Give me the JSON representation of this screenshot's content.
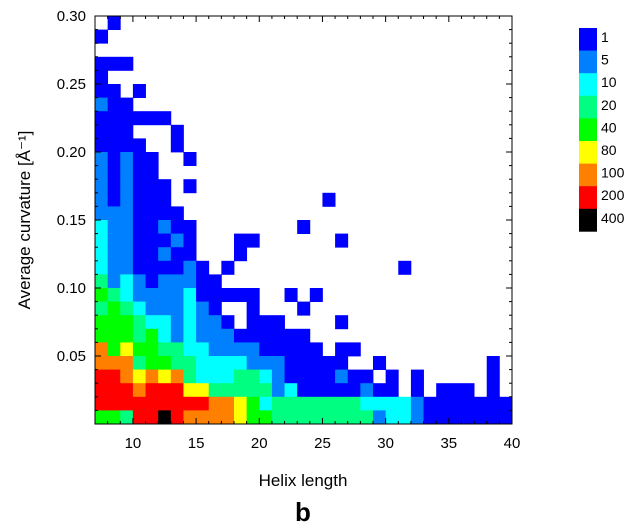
{
  "chart_data": {
    "type": "heatmap",
    "title": "",
    "xlabel": "Helix length",
    "ylabel": "Average curvature  [Å⁻¹]",
    "xlim": [
      7,
      40
    ],
    "ylim": [
      0.0,
      0.3
    ],
    "x_ticks": [
      10,
      15,
      20,
      25,
      30,
      35,
      40
    ],
    "y_ticks": [
      0.05,
      0.1,
      0.15,
      0.2,
      0.25,
      0.3
    ],
    "x_tick_labels": [
      "10",
      "15",
      "20",
      "25",
      "30",
      "35",
      "40"
    ],
    "y_tick_labels": [
      "0.05",
      "0.10",
      "0.15",
      "0.20",
      "0.25",
      "0.30"
    ],
    "bin_width_x": 1,
    "bin_width_y": 0.01,
    "color_scale": {
      "labels": [
        "1",
        "5",
        "10",
        "20",
        "40",
        "80",
        "100",
        "200",
        "400"
      ],
      "colors": [
        "#0000ff",
        "#0080ff",
        "#00ffff",
        "#00ff80",
        "#00ff00",
        "#ffff00",
        "#ff8000",
        "#ff0000",
        "#000000"
      ]
    },
    "cells_note": "Each cell: [helix_length_bin_start, curvature_bin_start, color_class_index]",
    "cells": [
      [
        8,
        0.29,
        0
      ],
      [
        7,
        0.28,
        0
      ],
      [
        7,
        0.26,
        0
      ],
      [
        8,
        0.26,
        0
      ],
      [
        9,
        0.26,
        0
      ],
      [
        7,
        0.25,
        0
      ],
      [
        7,
        0.24,
        0
      ],
      [
        8,
        0.24,
        0
      ],
      [
        10,
        0.24,
        0
      ],
      [
        7,
        0.23,
        1
      ],
      [
        8,
        0.23,
        0
      ],
      [
        9,
        0.23,
        0
      ],
      [
        7,
        0.22,
        0
      ],
      [
        8,
        0.22,
        0
      ],
      [
        9,
        0.22,
        0
      ],
      [
        10,
        0.22,
        0
      ],
      [
        11,
        0.22,
        0
      ],
      [
        12,
        0.22,
        0
      ],
      [
        7,
        0.21,
        0
      ],
      [
        8,
        0.21,
        0
      ],
      [
        9,
        0.21,
        0
      ],
      [
        13,
        0.21,
        0
      ],
      [
        7,
        0.2,
        0
      ],
      [
        8,
        0.2,
        0
      ],
      [
        9,
        0.2,
        0
      ],
      [
        10,
        0.2,
        0
      ],
      [
        13,
        0.2,
        0
      ],
      [
        7,
        0.19,
        1
      ],
      [
        8,
        0.19,
        0
      ],
      [
        9,
        0.19,
        1
      ],
      [
        10,
        0.19,
        0
      ],
      [
        11,
        0.19,
        0
      ],
      [
        14,
        0.19,
        0
      ],
      [
        7,
        0.18,
        1
      ],
      [
        8,
        0.18,
        0
      ],
      [
        9,
        0.18,
        1
      ],
      [
        10,
        0.18,
        0
      ],
      [
        11,
        0.18,
        0
      ],
      [
        7,
        0.17,
        1
      ],
      [
        8,
        0.17,
        0
      ],
      [
        9,
        0.17,
        1
      ],
      [
        10,
        0.17,
        0
      ],
      [
        11,
        0.17,
        0
      ],
      [
        12,
        0.17,
        0
      ],
      [
        14,
        0.17,
        0
      ],
      [
        7,
        0.16,
        1
      ],
      [
        8,
        0.16,
        0
      ],
      [
        9,
        0.16,
        1
      ],
      [
        10,
        0.16,
        0
      ],
      [
        11,
        0.16,
        0
      ],
      [
        12,
        0.16,
        0
      ],
      [
        25,
        0.16,
        0
      ],
      [
        7,
        0.15,
        1
      ],
      [
        8,
        0.15,
        1
      ],
      [
        9,
        0.15,
        1
      ],
      [
        10,
        0.15,
        0
      ],
      [
        11,
        0.15,
        0
      ],
      [
        12,
        0.15,
        0
      ],
      [
        13,
        0.15,
        0
      ],
      [
        7,
        0.14,
        2
      ],
      [
        8,
        0.14,
        1
      ],
      [
        9,
        0.14,
        1
      ],
      [
        10,
        0.14,
        0
      ],
      [
        11,
        0.14,
        0
      ],
      [
        12,
        0.14,
        1
      ],
      [
        13,
        0.14,
        0
      ],
      [
        14,
        0.14,
        0
      ],
      [
        23,
        0.14,
        0
      ],
      [
        7,
        0.13,
        2
      ],
      [
        8,
        0.13,
        1
      ],
      [
        9,
        0.13,
        1
      ],
      [
        10,
        0.13,
        0
      ],
      [
        11,
        0.13,
        0
      ],
      [
        12,
        0.13,
        0
      ],
      [
        13,
        0.13,
        1
      ],
      [
        14,
        0.13,
        0
      ],
      [
        18,
        0.13,
        0
      ],
      [
        19,
        0.13,
        0
      ],
      [
        26,
        0.13,
        0
      ],
      [
        7,
        0.12,
        2
      ],
      [
        8,
        0.12,
        1
      ],
      [
        9,
        0.12,
        1
      ],
      [
        10,
        0.12,
        0
      ],
      [
        11,
        0.12,
        0
      ],
      [
        12,
        0.12,
        1
      ],
      [
        13,
        0.12,
        0
      ],
      [
        14,
        0.12,
        0
      ],
      [
        18,
        0.12,
        0
      ],
      [
        7,
        0.11,
        2
      ],
      [
        8,
        0.11,
        1
      ],
      [
        9,
        0.11,
        1
      ],
      [
        10,
        0.11,
        0
      ],
      [
        11,
        0.11,
        0
      ],
      [
        12,
        0.11,
        0
      ],
      [
        13,
        0.11,
        0
      ],
      [
        14,
        0.11,
        1
      ],
      [
        15,
        0.11,
        0
      ],
      [
        17,
        0.11,
        0
      ],
      [
        31,
        0.11,
        0
      ],
      [
        7,
        0.1,
        3
      ],
      [
        8,
        0.1,
        1
      ],
      [
        9,
        0.1,
        2
      ],
      [
        10,
        0.1,
        1
      ],
      [
        11,
        0.1,
        0
      ],
      [
        12,
        0.1,
        1
      ],
      [
        13,
        0.1,
        1
      ],
      [
        14,
        0.1,
        1
      ],
      [
        15,
        0.1,
        0
      ],
      [
        16,
        0.1,
        0
      ],
      [
        7,
        0.09,
        4
      ],
      [
        8,
        0.09,
        3
      ],
      [
        9,
        0.09,
        2
      ],
      [
        10,
        0.09,
        1
      ],
      [
        11,
        0.09,
        1
      ],
      [
        12,
        0.09,
        1
      ],
      [
        13,
        0.09,
        1
      ],
      [
        14,
        0.09,
        2
      ],
      [
        15,
        0.09,
        0
      ],
      [
        16,
        0.09,
        0
      ],
      [
        17,
        0.09,
        0
      ],
      [
        18,
        0.09,
        0
      ],
      [
        19,
        0.09,
        0
      ],
      [
        22,
        0.09,
        0
      ],
      [
        24,
        0.09,
        0
      ],
      [
        7,
        0.08,
        3
      ],
      [
        8,
        0.08,
        4
      ],
      [
        9,
        0.08,
        3
      ],
      [
        10,
        0.08,
        2
      ],
      [
        11,
        0.08,
        1
      ],
      [
        12,
        0.08,
        1
      ],
      [
        13,
        0.08,
        1
      ],
      [
        14,
        0.08,
        2
      ],
      [
        15,
        0.08,
        1
      ],
      [
        16,
        0.08,
        0
      ],
      [
        19,
        0.08,
        0
      ],
      [
        23,
        0.08,
        0
      ],
      [
        7,
        0.07,
        4
      ],
      [
        8,
        0.07,
        4
      ],
      [
        9,
        0.07,
        4
      ],
      [
        10,
        0.07,
        3
      ],
      [
        11,
        0.07,
        2
      ],
      [
        12,
        0.07,
        2
      ],
      [
        13,
        0.07,
        1
      ],
      [
        14,
        0.07,
        2
      ],
      [
        15,
        0.07,
        1
      ],
      [
        16,
        0.07,
        1
      ],
      [
        17,
        0.07,
        0
      ],
      [
        19,
        0.07,
        0
      ],
      [
        20,
        0.07,
        0
      ],
      [
        21,
        0.07,
        0
      ],
      [
        26,
        0.07,
        0
      ],
      [
        7,
        0.06,
        4
      ],
      [
        8,
        0.06,
        4
      ],
      [
        9,
        0.06,
        4
      ],
      [
        10,
        0.06,
        3
      ],
      [
        11,
        0.06,
        4
      ],
      [
        12,
        0.06,
        2
      ],
      [
        13,
        0.06,
        1
      ],
      [
        14,
        0.06,
        2
      ],
      [
        15,
        0.06,
        1
      ],
      [
        16,
        0.06,
        1
      ],
      [
        17,
        0.06,
        1
      ],
      [
        18,
        0.06,
        0
      ],
      [
        19,
        0.06,
        0
      ],
      [
        20,
        0.06,
        0
      ],
      [
        21,
        0.06,
        0
      ],
      [
        22,
        0.06,
        0
      ],
      [
        23,
        0.06,
        0
      ],
      [
        7,
        0.05,
        6
      ],
      [
        8,
        0.05,
        4
      ],
      [
        9,
        0.05,
        5
      ],
      [
        10,
        0.05,
        4
      ],
      [
        11,
        0.05,
        4
      ],
      [
        12,
        0.05,
        3
      ],
      [
        13,
        0.05,
        3
      ],
      [
        14,
        0.05,
        2
      ],
      [
        15,
        0.05,
        2
      ],
      [
        16,
        0.05,
        1
      ],
      [
        17,
        0.05,
        1
      ],
      [
        18,
        0.05,
        1
      ],
      [
        19,
        0.05,
        1
      ],
      [
        20,
        0.05,
        0
      ],
      [
        21,
        0.05,
        0
      ],
      [
        22,
        0.05,
        0
      ],
      [
        23,
        0.05,
        0
      ],
      [
        24,
        0.05,
        0
      ],
      [
        26,
        0.05,
        0
      ],
      [
        27,
        0.05,
        0
      ],
      [
        7,
        0.04,
        6
      ],
      [
        8,
        0.04,
        6
      ],
      [
        9,
        0.04,
        6
      ],
      [
        10,
        0.04,
        3
      ],
      [
        11,
        0.04,
        4
      ],
      [
        12,
        0.04,
        4
      ],
      [
        13,
        0.04,
        3
      ],
      [
        14,
        0.04,
        3
      ],
      [
        15,
        0.04,
        2
      ],
      [
        16,
        0.04,
        2
      ],
      [
        17,
        0.04,
        2
      ],
      [
        18,
        0.04,
        2
      ],
      [
        19,
        0.04,
        1
      ],
      [
        20,
        0.04,
        1
      ],
      [
        21,
        0.04,
        1
      ],
      [
        22,
        0.04,
        0
      ],
      [
        23,
        0.04,
        0
      ],
      [
        24,
        0.04,
        0
      ],
      [
        25,
        0.04,
        0
      ],
      [
        26,
        0.04,
        0
      ],
      [
        29,
        0.04,
        0
      ],
      [
        38,
        0.04,
        0
      ],
      [
        7,
        0.03,
        7
      ],
      [
        8,
        0.03,
        7
      ],
      [
        9,
        0.03,
        6
      ],
      [
        10,
        0.03,
        5
      ],
      [
        11,
        0.03,
        6
      ],
      [
        12,
        0.03,
        5
      ],
      [
        13,
        0.03,
        6
      ],
      [
        14,
        0.03,
        3
      ],
      [
        15,
        0.03,
        2
      ],
      [
        16,
        0.03,
        2
      ],
      [
        17,
        0.03,
        2
      ],
      [
        18,
        0.03,
        3
      ],
      [
        19,
        0.03,
        3
      ],
      [
        20,
        0.03,
        2
      ],
      [
        21,
        0.03,
        1
      ],
      [
        22,
        0.03,
        0
      ],
      [
        23,
        0.03,
        0
      ],
      [
        24,
        0.03,
        0
      ],
      [
        25,
        0.03,
        0
      ],
      [
        26,
        0.03,
        1
      ],
      [
        27,
        0.03,
        0
      ],
      [
        28,
        0.03,
        0
      ],
      [
        30,
        0.03,
        0
      ],
      [
        32,
        0.03,
        0
      ],
      [
        38,
        0.03,
        0
      ],
      [
        7,
        0.02,
        7
      ],
      [
        8,
        0.02,
        7
      ],
      [
        9,
        0.02,
        7
      ],
      [
        10,
        0.02,
        6
      ],
      [
        11,
        0.02,
        7
      ],
      [
        12,
        0.02,
        7
      ],
      [
        13,
        0.02,
        7
      ],
      [
        14,
        0.02,
        5
      ],
      [
        15,
        0.02,
        5
      ],
      [
        16,
        0.02,
        3
      ],
      [
        17,
        0.02,
        3
      ],
      [
        18,
        0.02,
        3
      ],
      [
        19,
        0.02,
        3
      ],
      [
        20,
        0.02,
        3
      ],
      [
        21,
        0.02,
        1
      ],
      [
        22,
        0.02,
        2
      ],
      [
        23,
        0.02,
        0
      ],
      [
        24,
        0.02,
        0
      ],
      [
        25,
        0.02,
        0
      ],
      [
        26,
        0.02,
        0
      ],
      [
        27,
        0.02,
        0
      ],
      [
        28,
        0.02,
        1
      ],
      [
        29,
        0.02,
        0
      ],
      [
        30,
        0.02,
        0
      ],
      [
        32,
        0.02,
        0
      ],
      [
        34,
        0.02,
        0
      ],
      [
        35,
        0.02,
        0
      ],
      [
        36,
        0.02,
        0
      ],
      [
        38,
        0.02,
        0
      ],
      [
        7,
        0.01,
        7
      ],
      [
        8,
        0.01,
        7
      ],
      [
        9,
        0.01,
        7
      ],
      [
        10,
        0.01,
        7
      ],
      [
        11,
        0.01,
        7
      ],
      [
        12,
        0.01,
        7
      ],
      [
        13,
        0.01,
        7
      ],
      [
        14,
        0.01,
        7
      ],
      [
        15,
        0.01,
        7
      ],
      [
        16,
        0.01,
        6
      ],
      [
        17,
        0.01,
        6
      ],
      [
        18,
        0.01,
        5
      ],
      [
        19,
        0.01,
        4
      ],
      [
        20,
        0.01,
        2
      ],
      [
        21,
        0.01,
        3
      ],
      [
        22,
        0.01,
        3
      ],
      [
        23,
        0.01,
        3
      ],
      [
        24,
        0.01,
        3
      ],
      [
        25,
        0.01,
        3
      ],
      [
        26,
        0.01,
        3
      ],
      [
        27,
        0.01,
        3
      ],
      [
        28,
        0.01,
        2
      ],
      [
        29,
        0.01,
        2
      ],
      [
        30,
        0.01,
        2
      ],
      [
        31,
        0.01,
        2
      ],
      [
        32,
        0.01,
        1
      ],
      [
        33,
        0.01,
        0
      ],
      [
        34,
        0.01,
        0
      ],
      [
        35,
        0.01,
        0
      ],
      [
        36,
        0.01,
        0
      ],
      [
        37,
        0.01,
        0
      ],
      [
        38,
        0.01,
        0
      ],
      [
        39,
        0.01,
        0
      ],
      [
        7,
        0.0,
        4
      ],
      [
        8,
        0.0,
        4
      ],
      [
        9,
        0.0,
        3
      ],
      [
        10,
        0.0,
        7
      ],
      [
        11,
        0.0,
        7
      ],
      [
        12,
        0.0,
        8
      ],
      [
        13,
        0.0,
        7
      ],
      [
        14,
        0.0,
        6
      ],
      [
        15,
        0.0,
        6
      ],
      [
        16,
        0.0,
        6
      ],
      [
        17,
        0.0,
        6
      ],
      [
        18,
        0.0,
        5
      ],
      [
        19,
        0.0,
        4
      ],
      [
        20,
        0.0,
        4
      ],
      [
        21,
        0.0,
        3
      ],
      [
        22,
        0.0,
        3
      ],
      [
        23,
        0.0,
        3
      ],
      [
        24,
        0.0,
        3
      ],
      [
        25,
        0.0,
        3
      ],
      [
        26,
        0.0,
        3
      ],
      [
        27,
        0.0,
        3
      ],
      [
        28,
        0.0,
        3
      ],
      [
        29,
        0.0,
        1
      ],
      [
        30,
        0.0,
        2
      ],
      [
        31,
        0.0,
        2
      ],
      [
        32,
        0.0,
        1
      ],
      [
        33,
        0.0,
        0
      ],
      [
        34,
        0.0,
        0
      ],
      [
        35,
        0.0,
        0
      ],
      [
        36,
        0.0,
        0
      ],
      [
        37,
        0.0,
        0
      ],
      [
        38,
        0.0,
        0
      ],
      [
        39,
        0.0,
        0
      ]
    ]
  },
  "figure": {
    "panel_label": "b"
  }
}
